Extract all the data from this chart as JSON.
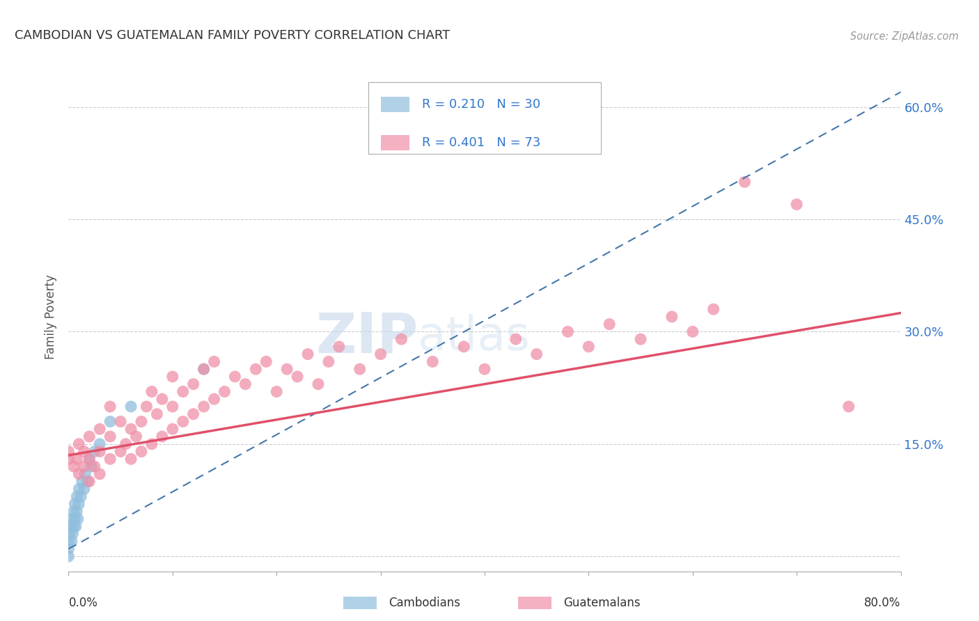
{
  "title": "CAMBODIAN VS GUATEMALAN FAMILY POVERTY CORRELATION CHART",
  "source": "Source: ZipAtlas.com",
  "ylabel": "Family Poverty",
  "yticks": [
    0.0,
    0.15,
    0.3,
    0.45,
    0.6
  ],
  "ytick_labels": [
    "",
    "15.0%",
    "30.0%",
    "45.0%",
    "60.0%"
  ],
  "xlim": [
    0.0,
    0.8
  ],
  "ylim": [
    -0.02,
    0.66
  ],
  "watermark_zip": "ZIP",
  "watermark_atlas": "atlas",
  "cambodian_color": "#90bedd",
  "guatemalan_color": "#f090a8",
  "cambodian_trend_color": "#4477aa",
  "guatemalan_trend_color": "#e0506a",
  "R_cambodian": 0.21,
  "R_guatemalan": 0.401,
  "N_cambodian": 30,
  "N_guatemalan": 73,
  "background_color": "#ffffff",
  "grid_color": "#cccccc",
  "cambodian_x": [
    0.0,
    0.0,
    0.0,
    0.001,
    0.002,
    0.003,
    0.003,
    0.004,
    0.005,
    0.005,
    0.006,
    0.006,
    0.007,
    0.008,
    0.008,
    0.009,
    0.01,
    0.01,
    0.012,
    0.013,
    0.015,
    0.016,
    0.018,
    0.02,
    0.022,
    0.025,
    0.03,
    0.04,
    0.06,
    0.13
  ],
  "cambodian_y": [
    0.0,
    0.01,
    0.02,
    0.03,
    0.04,
    0.02,
    0.05,
    0.03,
    0.04,
    0.06,
    0.05,
    0.07,
    0.04,
    0.06,
    0.08,
    0.05,
    0.07,
    0.09,
    0.08,
    0.1,
    0.09,
    0.11,
    0.1,
    0.13,
    0.12,
    0.14,
    0.15,
    0.18,
    0.2,
    0.25
  ],
  "guatemalan_x": [
    0.0,
    0.0,
    0.005,
    0.008,
    0.01,
    0.01,
    0.015,
    0.015,
    0.02,
    0.02,
    0.02,
    0.025,
    0.03,
    0.03,
    0.03,
    0.04,
    0.04,
    0.04,
    0.05,
    0.05,
    0.055,
    0.06,
    0.06,
    0.065,
    0.07,
    0.07,
    0.075,
    0.08,
    0.08,
    0.085,
    0.09,
    0.09,
    0.1,
    0.1,
    0.1,
    0.11,
    0.11,
    0.12,
    0.12,
    0.13,
    0.13,
    0.14,
    0.14,
    0.15,
    0.16,
    0.17,
    0.18,
    0.19,
    0.2,
    0.21,
    0.22,
    0.23,
    0.24,
    0.25,
    0.26,
    0.28,
    0.3,
    0.32,
    0.35,
    0.38,
    0.4,
    0.43,
    0.45,
    0.48,
    0.5,
    0.52,
    0.55,
    0.58,
    0.6,
    0.62,
    0.65,
    0.7,
    0.75
  ],
  "guatemalan_y": [
    0.13,
    0.14,
    0.12,
    0.13,
    0.11,
    0.15,
    0.12,
    0.14,
    0.1,
    0.13,
    0.16,
    0.12,
    0.11,
    0.14,
    0.17,
    0.13,
    0.16,
    0.2,
    0.14,
    0.18,
    0.15,
    0.13,
    0.17,
    0.16,
    0.14,
    0.18,
    0.2,
    0.15,
    0.22,
    0.19,
    0.16,
    0.21,
    0.17,
    0.2,
    0.24,
    0.18,
    0.22,
    0.19,
    0.23,
    0.2,
    0.25,
    0.21,
    0.26,
    0.22,
    0.24,
    0.23,
    0.25,
    0.26,
    0.22,
    0.25,
    0.24,
    0.27,
    0.23,
    0.26,
    0.28,
    0.25,
    0.27,
    0.29,
    0.26,
    0.28,
    0.25,
    0.29,
    0.27,
    0.3,
    0.28,
    0.31,
    0.29,
    0.32,
    0.3,
    0.33,
    0.5,
    0.47,
    0.2
  ],
  "cam_trend_x0": 0.0,
  "cam_trend_y0": 0.01,
  "cam_trend_x1": 0.8,
  "cam_trend_y1": 0.62,
  "gua_trend_x0": 0.0,
  "gua_trend_y0": 0.135,
  "gua_trend_x1": 0.8,
  "gua_trend_y1": 0.325
}
